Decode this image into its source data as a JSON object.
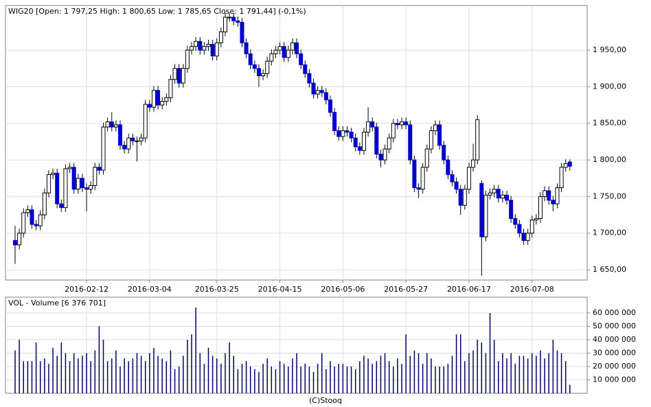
{
  "chart_data": [
    {
      "type": "candlestick",
      "title": "WIG20 [Open: 1 797,25  High: 1 800,65  Low: 1 785,65  Close: 1 791,44] (-0,1%)",
      "categories": [
        null,
        null,
        null,
        null,
        null,
        null,
        null,
        null,
        null,
        null,
        null,
        null,
        null,
        null,
        null,
        null,
        null,
        "2016-02-12",
        null,
        null,
        null,
        null,
        null,
        null,
        null,
        null,
        null,
        null,
        null,
        null,
        null,
        null,
        "2016-03-04",
        null,
        null,
        null,
        null,
        null,
        null,
        null,
        null,
        null,
        null,
        null,
        null,
        null,
        null,
        null,
        "2016-03-25",
        null,
        null,
        null,
        null,
        null,
        null,
        null,
        null,
        null,
        null,
        null,
        null,
        null,
        null,
        "2016-04-15",
        null,
        null,
        null,
        null,
        null,
        null,
        null,
        null,
        null,
        null,
        null,
        null,
        null,
        null,
        "2016-05-06",
        null,
        null,
        null,
        null,
        null,
        null,
        null,
        null,
        null,
        null,
        null,
        null,
        null,
        null,
        "2016-05-27",
        null,
        null,
        null,
        null,
        null,
        null,
        null,
        null,
        null,
        null,
        null,
        null,
        null,
        null,
        "2016-06-17",
        null,
        null,
        null,
        null,
        null,
        null,
        null,
        null,
        null,
        null,
        null,
        null,
        null,
        null,
        "2016-07-08",
        null,
        null,
        null,
        null,
        null,
        null,
        null,
        null,
        null
      ],
      "open": [
        1690,
        1684,
        1700,
        1728,
        1732,
        1712,
        1710,
        1725,
        1755,
        1780,
        1782,
        1740,
        1735,
        1788,
        1790,
        1760,
        1775,
        1762,
        1760,
        1765,
        1790,
        1786,
        1845,
        1852,
        1845,
        1848,
        1820,
        1815,
        1830,
        1826,
        1826,
        1830,
        1876,
        1872,
        1895,
        1875,
        1880,
        1885,
        1910,
        1925,
        1905,
        1925,
        1950,
        1955,
        1962,
        1950,
        1955,
        1958,
        1942,
        1960,
        1975,
        1995,
        1995,
        1990,
        1988,
        1960,
        1945,
        1930,
        1925,
        1915,
        1918,
        1935,
        1945,
        1950,
        1955,
        1940,
        1950,
        1960,
        1945,
        1930,
        1918,
        1905,
        1890,
        1895,
        1892,
        1882,
        1865,
        1840,
        1832,
        1840,
        1838,
        1830,
        1818,
        1813,
        1838,
        1852,
        1845,
        1808,
        1800,
        1815,
        1830,
        1850,
        1848,
        1852,
        1848,
        1800,
        1762,
        1760,
        1790,
        1815,
        1840,
        1848,
        1820,
        1800,
        1780,
        1770,
        1760,
        1738,
        1760,
        1790,
        1800,
        1768,
        1695,
        1752,
        1755,
        1760,
        1748,
        1752,
        1745,
        1720,
        1712,
        1700,
        1690,
        1700,
        1718,
        1720,
        1750,
        1758,
        1745,
        1740,
        1762,
        1790,
        1797.25
      ],
      "high": [
        1710,
        1706,
        1734,
        1738,
        1738,
        1718,
        1731,
        1761,
        1786,
        1788,
        1788,
        1746,
        1794,
        1796,
        1796,
        1781,
        1781,
        1768,
        1771,
        1796,
        1796,
        1851,
        1858,
        1865,
        1854,
        1854,
        1826,
        1836,
        1836,
        1832,
        1836,
        1882,
        1882,
        1901,
        1901,
        1886,
        1891,
        1916,
        1931,
        1931,
        1931,
        1956,
        1961,
        1968,
        1968,
        1961,
        1964,
        1964,
        1966,
        1981,
        2001,
        2001,
        2001,
        1996,
        1994,
        1966,
        1951,
        1936,
        1931,
        1924,
        1941,
        1951,
        1956,
        1961,
        1961,
        1956,
        1966,
        1966,
        1951,
        1936,
        1924,
        1911,
        1901,
        1901,
        1898,
        1888,
        1871,
        1846,
        1846,
        1846,
        1844,
        1836,
        1824,
        1844,
        1872,
        1858,
        1851,
        1814,
        1821,
        1836,
        1856,
        1856,
        1858,
        1858,
        1854,
        1806,
        1768,
        1796,
        1821,
        1846,
        1854,
        1854,
        1826,
        1806,
        1786,
        1776,
        1766,
        1766,
        1796,
        1822,
        1861,
        1772,
        1758,
        1761,
        1766,
        1766,
        1758,
        1758,
        1751,
        1726,
        1718,
        1706,
        1706,
        1724,
        1726,
        1756,
        1764,
        1764,
        1751,
        1768,
        1796,
        1801,
        1800.65
      ],
      "low": [
        1658,
        1678,
        1694,
        1722,
        1706,
        1704,
        1704,
        1719,
        1749,
        1774,
        1734,
        1729,
        1729,
        1782,
        1754,
        1754,
        1756,
        1730,
        1754,
        1759,
        1780,
        1780,
        1839,
        1839,
        1839,
        1814,
        1809,
        1809,
        1820,
        1798,
        1820,
        1824,
        1866,
        1866,
        1869,
        1869,
        1874,
        1879,
        1904,
        1899,
        1899,
        1919,
        1944,
        1949,
        1944,
        1944,
        1949,
        1936,
        1936,
        1954,
        1969,
        1989,
        1984,
        1982,
        1954,
        1939,
        1924,
        1919,
        1900,
        1909,
        1912,
        1929,
        1939,
        1944,
        1934,
        1934,
        1944,
        1939,
        1924,
        1912,
        1899,
        1884,
        1884,
        1886,
        1876,
        1859,
        1834,
        1826,
        1826,
        1832,
        1824,
        1812,
        1807,
        1807,
        1832,
        1839,
        1802,
        1790,
        1794,
        1809,
        1824,
        1842,
        1842,
        1842,
        1794,
        1756,
        1748,
        1754,
        1784,
        1809,
        1834,
        1814,
        1794,
        1774,
        1764,
        1754,
        1725,
        1732,
        1754,
        1784,
        1794,
        1642,
        1689,
        1746,
        1749,
        1742,
        1742,
        1739,
        1714,
        1706,
        1694,
        1684,
        1684,
        1694,
        1712,
        1714,
        1744,
        1739,
        1730,
        1734,
        1756,
        1784,
        1785.65
      ],
      "close": [
        1684,
        1700,
        1728,
        1732,
        1712,
        1710,
        1725,
        1755,
        1780,
        1782,
        1740,
        1735,
        1788,
        1790,
        1760,
        1775,
        1762,
        1760,
        1765,
        1790,
        1786,
        1845,
        1852,
        1845,
        1848,
        1820,
        1815,
        1830,
        1826,
        1826,
        1830,
        1876,
        1872,
        1895,
        1875,
        1880,
        1885,
        1910,
        1925,
        1905,
        1925,
        1950,
        1955,
        1962,
        1950,
        1955,
        1958,
        1942,
        1960,
        1975,
        1995,
        1995,
        1990,
        1988,
        1960,
        1945,
        1930,
        1925,
        1915,
        1918,
        1935,
        1945,
        1950,
        1955,
        1940,
        1950,
        1960,
        1945,
        1930,
        1918,
        1905,
        1890,
        1895,
        1892,
        1882,
        1865,
        1840,
        1832,
        1840,
        1838,
        1830,
        1818,
        1813,
        1838,
        1852,
        1845,
        1808,
        1800,
        1815,
        1830,
        1850,
        1848,
        1852,
        1848,
        1800,
        1762,
        1760,
        1790,
        1815,
        1840,
        1848,
        1820,
        1800,
        1780,
        1770,
        1760,
        1738,
        1760,
        1790,
        1800,
        1855,
        1695,
        1752,
        1755,
        1760,
        1748,
        1752,
        1745,
        1720,
        1712,
        1700,
        1690,
        1700,
        1718,
        1720,
        1750,
        1758,
        1745,
        1740,
        1762,
        1790,
        1795,
        1791.44
      ],
      "up_color": "#ffffff",
      "down_color": "#0000cc",
      "outline_color": "#000000",
      "ylim": [
        1636,
        2011
      ],
      "yticks": [
        {
          "value": 1650,
          "label": "1 650,00"
        },
        {
          "value": 1700,
          "label": "1 700,00"
        },
        {
          "value": 1750,
          "label": "1 750,00"
        },
        {
          "value": 1800,
          "label": "1 800,00"
        },
        {
          "value": 1850,
          "label": "1 850,00"
        },
        {
          "value": 1900,
          "label": "1 900,00"
        },
        {
          "value": 1950,
          "label": "1 950,00"
        }
      ],
      "grid": true
    },
    {
      "type": "bar",
      "title": "VOL - Volume [6 376 701]",
      "values": [
        32000000,
        40000000,
        24000000,
        24000000,
        24000000,
        38000000,
        24000000,
        26000000,
        22000000,
        34000000,
        28000000,
        38000000,
        30000000,
        24000000,
        30000000,
        26000000,
        28000000,
        30000000,
        24000000,
        32000000,
        50000000,
        40000000,
        24000000,
        26000000,
        32000000,
        20000000,
        26000000,
        24000000,
        26000000,
        30000000,
        28000000,
        24000000,
        30000000,
        34000000,
        28000000,
        26000000,
        24000000,
        32000000,
        18000000,
        20000000,
        28000000,
        40000000,
        44000000,
        64000000,
        30000000,
        22000000,
        34000000,
        28000000,
        26000000,
        22000000,
        30000000,
        38000000,
        28000000,
        18000000,
        22000000,
        24000000,
        20000000,
        18000000,
        16000000,
        22000000,
        26000000,
        20000000,
        18000000,
        24000000,
        22000000,
        20000000,
        26000000,
        30000000,
        20000000,
        22000000,
        20000000,
        16000000,
        22000000,
        30000000,
        18000000,
        24000000,
        20000000,
        22000000,
        22000000,
        20000000,
        20000000,
        18000000,
        24000000,
        28000000,
        26000000,
        22000000,
        24000000,
        28000000,
        30000000,
        24000000,
        20000000,
        26000000,
        22000000,
        44000000,
        28000000,
        32000000,
        30000000,
        22000000,
        30000000,
        26000000,
        20000000,
        20000000,
        20000000,
        22000000,
        28000000,
        44000000,
        44000000,
        24000000,
        30000000,
        32000000,
        40000000,
        38000000,
        30000000,
        60000000,
        40000000,
        24000000,
        30000000,
        26000000,
        30000000,
        22000000,
        28000000,
        28000000,
        26000000,
        30000000,
        28000000,
        32000000,
        26000000,
        30000000,
        40000000,
        32000000,
        30000000,
        24000000,
        6376701
      ],
      "color": "#000066",
      "ylim": [
        0,
        71800000
      ],
      "yticks": [
        {
          "value": 10000000,
          "label": "10 000 000"
        },
        {
          "value": 20000000,
          "label": "20 000 000"
        },
        {
          "value": 30000000,
          "label": "30 000 000"
        },
        {
          "value": 40000000,
          "label": "40 000 000"
        },
        {
          "value": 50000000,
          "label": "50 000 000"
        },
        {
          "value": 60000000,
          "label": "60 000 000"
        }
      ],
      "grid": true
    }
  ],
  "footer": "(C)Stooq"
}
